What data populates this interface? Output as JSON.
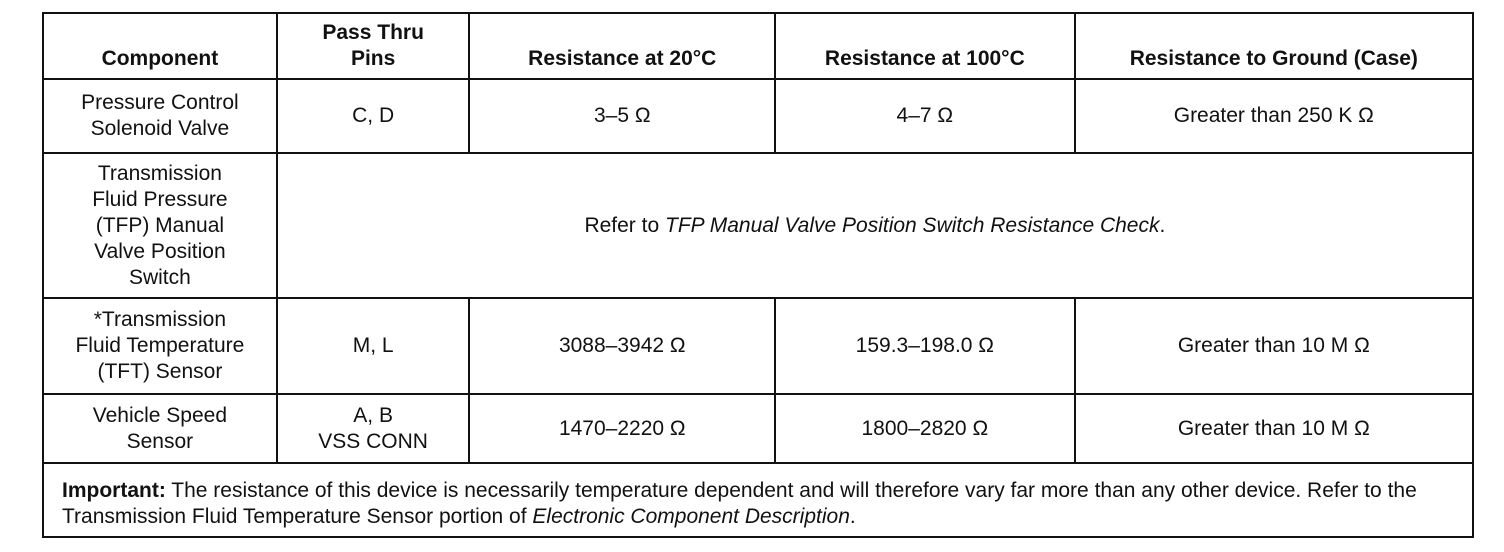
{
  "table": {
    "header": [
      [
        "Component"
      ],
      [
        "Pass Thru",
        "Pins"
      ],
      [
        "Resistance at 20°C"
      ],
      [
        "Resistance at 100°C"
      ],
      [
        "Resistance to Ground (Case)"
      ]
    ],
    "rows": [
      [
        [
          "Pressure Control",
          "Solenoid Valve"
        ],
        [
          "C, D"
        ],
        [
          "3–5 Ω"
        ],
        [
          "4–7 Ω"
        ],
        [
          "Greater than 250 K Ω"
        ]
      ],
      [
        [
          "Transmission",
          "Fluid Pressure",
          "(TFP) Manual",
          "Valve Position",
          "Switch"
        ]
      ],
      [
        [
          "*Transmission",
          "Fluid Temperature",
          "(TFT) Sensor"
        ],
        [
          "M, L"
        ],
        [
          "3088–3942 Ω"
        ],
        [
          "159.3–198.0 Ω"
        ],
        [
          "Greater than 10 M Ω"
        ]
      ],
      [
        [
          "Vehicle Speed",
          "Sensor"
        ],
        [
          "A, B",
          "VSS CONN"
        ],
        [
          "1470–2220 Ω"
        ],
        [
          "1800–2820 Ω"
        ],
        [
          "Greater than 10 M Ω"
        ]
      ]
    ],
    "tfp_note": {
      "prefix": "Refer to ",
      "emphasis": "TFP Manual Valve Position Switch Resistance Check",
      "suffix": "."
    },
    "note": {
      "label": "Important:",
      "text": " The resistance of this device is necessarily temperature dependent and will therefore vary far more than any other device. Refer to the Transmission Fluid Temperature Sensor portion of ",
      "emphasis": "Electronic Component Description",
      "suffix": "."
    }
  }
}
